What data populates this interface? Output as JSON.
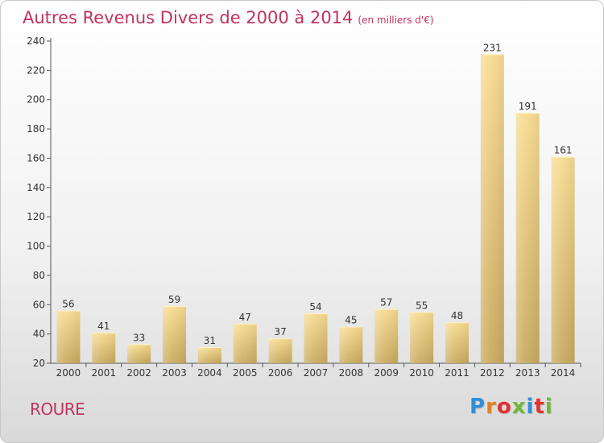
{
  "title": "Autres Revenus Divers de 2000 à 2014",
  "subtitle": "(en milliers d'€)",
  "commune": "ROURE",
  "logo": {
    "text": "Proxiti",
    "colors": [
      "#2f8fd8",
      "#e57f1f",
      "#e2312f",
      "#70b83b",
      "#2f8fd8",
      "#e2312f",
      "#70b83b"
    ]
  },
  "chart_data": {
    "type": "bar",
    "categories": [
      "2000",
      "2001",
      "2002",
      "2003",
      "2004",
      "2005",
      "2006",
      "2007",
      "2008",
      "2009",
      "2010",
      "2011",
      "2012",
      "2013",
      "2014"
    ],
    "values": [
      56,
      41,
      33,
      59,
      31,
      47,
      37,
      54,
      45,
      57,
      55,
      48,
      231,
      191,
      161
    ],
    "xlabel": "",
    "ylabel": "",
    "ylim": [
      20,
      240
    ],
    "yticks": [
      20,
      40,
      60,
      80,
      100,
      120,
      140,
      160,
      180,
      200,
      220,
      240
    ],
    "grid": false,
    "data_labels": true,
    "bar_color": "#e8c97a"
  }
}
